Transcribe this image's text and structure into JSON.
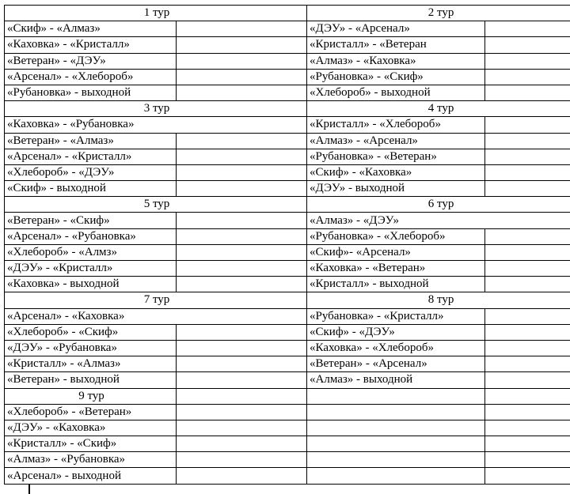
{
  "rounds": [
    {
      "title": "1 тур",
      "matches": [
        "«Скиф» - «Алмаз»",
        "«Каховка» - «Кристалл»",
        "«Ветеран» - «ДЭУ»",
        "«Арсенал» - «Хлебороб»",
        "«Рубановка» - выходной"
      ]
    },
    {
      "title": "2 тур",
      "matches": [
        "«ДЭУ» - «Арсенал»",
        "«Кристалл» - «Ветеран",
        "«Алмаз» - «Каховка»",
        "«Рубановка» - «Скиф»",
        "«Хлебороб» - выходной"
      ]
    },
    {
      "title": "3 тур",
      "matches": [
        "«Каховка» - «Рубановка»",
        "«Ветеран» - «Алмаз»",
        "«Арсенал» - «Кристалл»",
        "«Хлебороб» - «ДЭУ»",
        "«Скиф» - выходной"
      ]
    },
    {
      "title": "4 тур",
      "matches": [
        "«Кристалл» - «Хлебороб»",
        "«Алмаз» - «Арсенал»",
        "«Рубановка» - «Ветеран»",
        "«Скиф» - «Каховка»",
        "«ДЭУ» - выходной"
      ]
    },
    {
      "title": "5 тур",
      "matches": [
        "«Ветеран» - «Скиф»",
        "«Арсенал» - «Рубановка»",
        "«Хлебороб» - «Алмз»",
        "«ДЭУ» - «Кристалл»",
        "«Каховка» - выходной"
      ]
    },
    {
      "title": "6 тур",
      "matches": [
        "«Алмаз» - «ДЭУ»",
        "«Рубановка» - «Хлебороб»",
        "«Скиф»- «Арсенал»",
        "«Каховка» - «Ветеран»",
        "«Кристалл» - выходной"
      ]
    },
    {
      "title": "7 тур",
      "matches": [
        "«Арсенал» - «Каховка»",
        "«Хлебороб» - «Скиф»",
        "«ДЭУ» - «Рубановка»",
        "«Кристалл» - «Алмаз»",
        "«Ветеран» - выходной"
      ]
    },
    {
      "title": "8 тур",
      "matches": [
        "«Рубановка» - «Кристалл»",
        "«Скиф» - «ДЭУ»",
        "«Каховка» - «Хлебороб»",
        "«Ветеран» - «Арсенал»",
        "«Алмаз» - выходной"
      ]
    },
    {
      "title": "9 тур",
      "matches": [
        "«Хлебороб» - «Ветеран»",
        "«ДЭУ» - «Каховка»",
        "«Кристалл» - «Скиф»",
        "«Алмаз» - «Рубановка»",
        "«Арсенал» - выходной"
      ]
    }
  ]
}
